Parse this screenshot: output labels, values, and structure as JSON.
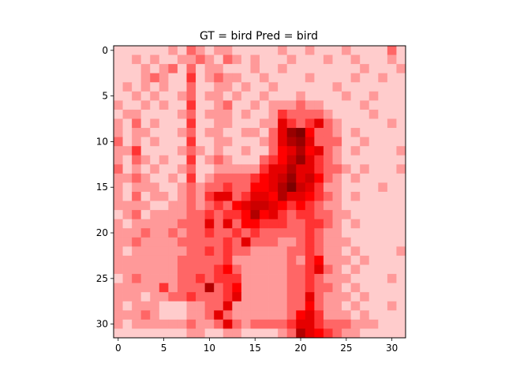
{
  "chart_data": {
    "type": "heatmap",
    "title": "GT = bird Pred = bird",
    "xlabel": "",
    "ylabel": "",
    "colormap": [
      "#ffffff",
      "#ff0000",
      "#7f0000"
    ],
    "value_range": [
      0,
      1
    ],
    "xlim": [
      -0.5,
      31.5
    ],
    "ylim": [
      31.5,
      -0.5
    ],
    "xticks": [
      0,
      5,
      10,
      15,
      20,
      25,
      30
    ],
    "yticks": [
      0,
      5,
      10,
      15,
      20,
      25,
      30
    ],
    "grid": false,
    "legend": "none",
    "values": [
      [
        0.1,
        0.1,
        0.1,
        0.1,
        0.1,
        0.1,
        0.2,
        0.1,
        0.3,
        0.2,
        0.1,
        0.2,
        0.2,
        0.1,
        0.1,
        0.1,
        0.1,
        0.1,
        0.2,
        0.1,
        0.1,
        0.2,
        0.1,
        0.1,
        0.1,
        0.2,
        0.1,
        0.1,
        0.1,
        0.1,
        0.3,
        0.1
      ],
      [
        0.1,
        0.1,
        0.2,
        0.1,
        0.2,
        0.1,
        0.1,
        0.2,
        0.2,
        0.3,
        0.2,
        0.1,
        0.3,
        0.2,
        0.1,
        0.2,
        0.1,
        0.1,
        0.1,
        0.2,
        0.1,
        0.1,
        0.1,
        0.2,
        0.1,
        0.1,
        0.2,
        0.1,
        0.1,
        0.1,
        0.2,
        0.1
      ],
      [
        0.1,
        0.1,
        0.1,
        0.2,
        0.1,
        0.2,
        0.3,
        0.1,
        0.3,
        0.1,
        0.2,
        0.2,
        0.1,
        0.1,
        0.1,
        0.2,
        0.1,
        0.1,
        0.2,
        0.1,
        0.1,
        0.1,
        0.1,
        0.1,
        0.1,
        0.1,
        0.1,
        0.2,
        0.1,
        0.1,
        0.1,
        0.2
      ],
      [
        0.1,
        0.1,
        0.1,
        0.2,
        0.3,
        0.2,
        0.1,
        0.1,
        0.4,
        0.1,
        0.2,
        0.3,
        0.2,
        0.2,
        0.1,
        0.1,
        0.2,
        0.1,
        0.1,
        0.1,
        0.1,
        0.2,
        0.1,
        0.1,
        0.1,
        0.1,
        0.2,
        0.1,
        0.1,
        0.2,
        0.1,
        0.1
      ],
      [
        0.1,
        0.2,
        0.1,
        0.2,
        0.1,
        0.2,
        0.1,
        0.1,
        0.3,
        0.1,
        0.1,
        0.2,
        0.2,
        0.1,
        0.2,
        0.1,
        0.1,
        0.2,
        0.1,
        0.1,
        0.1,
        0.1,
        0.1,
        0.1,
        0.2,
        0.1,
        0.1,
        0.1,
        0.1,
        0.1,
        0.1,
        0.1
      ],
      [
        0.1,
        0.1,
        0.2,
        0.1,
        0.2,
        0.1,
        0.1,
        0.2,
        0.3,
        0.1,
        0.2,
        0.2,
        0.1,
        0.2,
        0.1,
        0.1,
        0.2,
        0.1,
        0.1,
        0.1,
        0.2,
        0.1,
        0.1,
        0.1,
        0.1,
        0.2,
        0.1,
        0.1,
        0.2,
        0.1,
        0.1,
        0.1
      ],
      [
        0.2,
        0.1,
        0.1,
        0.2,
        0.1,
        0.2,
        0.1,
        0.1,
        0.4,
        0.1,
        0.1,
        0.2,
        0.3,
        0.1,
        0.1,
        0.2,
        0.1,
        0.2,
        0.2,
        0.2,
        0.3,
        0.2,
        0.2,
        0.1,
        0.1,
        0.1,
        0.1,
        0.2,
        0.1,
        0.1,
        0.1,
        0.1
      ],
      [
        0.1,
        0.2,
        0.2,
        0.1,
        0.1,
        0.1,
        0.1,
        0.2,
        0.3,
        0.1,
        0.2,
        0.2,
        0.2,
        0.1,
        0.2,
        0.1,
        0.1,
        0.2,
        0.4,
        0.3,
        0.3,
        0.3,
        0.3,
        0.2,
        0.1,
        0.1,
        0.1,
        0.1,
        0.2,
        0.1,
        0.1,
        0.1
      ],
      [
        0.2,
        0.1,
        0.3,
        0.1,
        0.2,
        0.1,
        0.1,
        0.1,
        0.4,
        0.1,
        0.1,
        0.2,
        0.2,
        0.1,
        0.1,
        0.1,
        0.2,
        0.2,
        0.6,
        0.4,
        0.3,
        0.4,
        0.6,
        0.3,
        0.2,
        0.1,
        0.1,
        0.1,
        0.1,
        0.1,
        0.2,
        0.1
      ],
      [
        0.2,
        0.1,
        0.2,
        0.2,
        0.1,
        0.1,
        0.1,
        0.2,
        0.3,
        0.1,
        0.2,
        0.2,
        0.1,
        0.1,
        0.2,
        0.2,
        0.1,
        0.3,
        0.6,
        0.9,
        1.0,
        0.5,
        0.3,
        0.3,
        0.2,
        0.1,
        0.2,
        0.1,
        0.1,
        0.1,
        0.1,
        0.1
      ],
      [
        0.3,
        0.1,
        0.2,
        0.1,
        0.2,
        0.1,
        0.1,
        0.1,
        0.4,
        0.1,
        0.1,
        0.2,
        0.2,
        0.1,
        0.1,
        0.1,
        0.2,
        0.3,
        0.6,
        0.8,
        0.9,
        0.6,
        0.3,
        0.3,
        0.3,
        0.1,
        0.1,
        0.2,
        0.1,
        0.1,
        0.1,
        0.1
      ],
      [
        0.2,
        0.2,
        0.4,
        0.1,
        0.1,
        0.1,
        0.1,
        0.2,
        0.3,
        0.2,
        0.1,
        0.2,
        0.1,
        0.1,
        0.2,
        0.1,
        0.1,
        0.3,
        0.5,
        0.6,
        0.8,
        0.5,
        0.6,
        0.3,
        0.2,
        0.1,
        0.2,
        0.1,
        0.1,
        0.1,
        0.1,
        0.2
      ],
      [
        0.2,
        0.1,
        0.3,
        0.2,
        0.1,
        0.2,
        0.1,
        0.1,
        0.4,
        0.1,
        0.2,
        0.3,
        0.2,
        0.1,
        0.1,
        0.1,
        0.3,
        0.4,
        0.5,
        0.7,
        0.9,
        0.6,
        0.4,
        0.3,
        0.2,
        0.1,
        0.1,
        0.1,
        0.1,
        0.1,
        0.1,
        0.1
      ],
      [
        0.3,
        0.1,
        0.2,
        0.1,
        0.2,
        0.1,
        0.1,
        0.2,
        0.3,
        0.1,
        0.1,
        0.2,
        0.2,
        0.2,
        0.2,
        0.2,
        0.4,
        0.6,
        0.6,
        0.8,
        0.6,
        0.6,
        0.4,
        0.3,
        0.3,
        0.2,
        0.1,
        0.2,
        0.1,
        0.1,
        0.1,
        0.2
      ],
      [
        0.2,
        0.2,
        0.3,
        0.2,
        0.1,
        0.1,
        0.2,
        0.1,
        0.4,
        0.1,
        0.2,
        0.3,
        0.3,
        0.3,
        0.3,
        0.4,
        0.5,
        0.6,
        0.7,
        0.9,
        0.6,
        0.7,
        0.5,
        0.3,
        0.2,
        0.1,
        0.2,
        0.1,
        0.1,
        0.1,
        0.1,
        0.1
      ],
      [
        0.2,
        0.1,
        0.2,
        0.2,
        0.2,
        0.1,
        0.1,
        0.2,
        0.3,
        0.2,
        0.3,
        0.3,
        0.4,
        0.3,
        0.3,
        0.5,
        0.5,
        0.6,
        0.8,
        1.0,
        0.7,
        0.6,
        0.4,
        0.2,
        0.2,
        0.1,
        0.1,
        0.1,
        0.1,
        0.2,
        0.1,
        0.1
      ],
      [
        0.2,
        0.1,
        0.3,
        0.1,
        0.2,
        0.2,
        0.1,
        0.2,
        0.3,
        0.2,
        0.4,
        0.6,
        0.6,
        0.3,
        0.4,
        0.6,
        0.6,
        0.5,
        0.8,
        0.6,
        0.6,
        0.5,
        0.4,
        0.3,
        0.2,
        0.1,
        0.2,
        0.1,
        0.1,
        0.1,
        0.1,
        0.1
      ],
      [
        0.2,
        0.2,
        0.2,
        0.2,
        0.1,
        0.1,
        0.2,
        0.2,
        0.3,
        0.2,
        0.3,
        0.4,
        0.3,
        0.5,
        0.6,
        0.7,
        0.7,
        0.6,
        0.5,
        0.4,
        0.5,
        0.4,
        0.3,
        0.2,
        0.2,
        0.1,
        0.1,
        0.1,
        0.1,
        0.1,
        0.1,
        0.1
      ],
      [
        0.1,
        0.2,
        0.3,
        0.1,
        0.2,
        0.2,
        0.2,
        0.2,
        0.3,
        0.3,
        0.4,
        0.3,
        0.4,
        0.4,
        0.5,
        0.8,
        0.5,
        0.6,
        0.4,
        0.3,
        0.4,
        0.4,
        0.3,
        0.3,
        0.2,
        0.2,
        0.1,
        0.1,
        0.1,
        0.1,
        0.1,
        0.1
      ],
      [
        0.2,
        0.1,
        0.2,
        0.2,
        0.2,
        0.2,
        0.2,
        0.3,
        0.3,
        0.3,
        0.6,
        0.3,
        0.6,
        0.3,
        0.5,
        0.5,
        0.4,
        0.4,
        0.4,
        0.3,
        0.3,
        0.4,
        0.4,
        0.3,
        0.2,
        0.1,
        0.2,
        0.1,
        0.1,
        0.1,
        0.1,
        0.1
      ],
      [
        0.2,
        0.2,
        0.2,
        0.3,
        0.2,
        0.2,
        0.3,
        0.2,
        0.3,
        0.3,
        0.4,
        0.3,
        0.3,
        0.4,
        0.3,
        0.4,
        0.3,
        0.3,
        0.3,
        0.3,
        0.3,
        0.4,
        0.3,
        0.2,
        0.2,
        0.1,
        0.1,
        0.1,
        0.1,
        0.1,
        0.1,
        0.1
      ],
      [
        0.2,
        0.2,
        0.3,
        0.2,
        0.2,
        0.2,
        0.2,
        0.3,
        0.3,
        0.3,
        0.3,
        0.3,
        0.4,
        0.3,
        0.6,
        0.3,
        0.3,
        0.3,
        0.2,
        0.2,
        0.3,
        0.4,
        0.3,
        0.2,
        0.2,
        0.2,
        0.1,
        0.1,
        0.1,
        0.1,
        0.1,
        0.1
      ],
      [
        0.2,
        0.1,
        0.2,
        0.2,
        0.2,
        0.2,
        0.2,
        0.2,
        0.3,
        0.3,
        0.4,
        0.3,
        0.4,
        0.3,
        0.3,
        0.2,
        0.2,
        0.2,
        0.2,
        0.3,
        0.3,
        0.4,
        0.3,
        0.2,
        0.2,
        0.1,
        0.2,
        0.1,
        0.1,
        0.1,
        0.1,
        0.2
      ],
      [
        0.2,
        0.2,
        0.2,
        0.2,
        0.2,
        0.2,
        0.2,
        0.3,
        0.3,
        0.3,
        0.3,
        0.3,
        0.4,
        0.2,
        0.2,
        0.2,
        0.2,
        0.2,
        0.2,
        0.3,
        0.2,
        0.4,
        0.5,
        0.2,
        0.2,
        0.2,
        0.1,
        0.2,
        0.1,
        0.1,
        0.1,
        0.1
      ],
      [
        0.2,
        0.2,
        0.2,
        0.2,
        0.2,
        0.2,
        0.2,
        0.3,
        0.3,
        0.3,
        0.3,
        0.4,
        0.5,
        0.3,
        0.2,
        0.2,
        0.2,
        0.2,
        0.2,
        0.3,
        0.3,
        0.4,
        0.6,
        0.3,
        0.2,
        0.1,
        0.2,
        0.1,
        0.1,
        0.1,
        0.1,
        0.1
      ],
      [
        0.1,
        0.2,
        0.3,
        0.2,
        0.2,
        0.2,
        0.2,
        0.3,
        0.3,
        0.4,
        0.3,
        0.4,
        0.4,
        0.4,
        0.2,
        0.2,
        0.2,
        0.2,
        0.2,
        0.3,
        0.3,
        0.4,
        0.3,
        0.2,
        0.2,
        0.2,
        0.1,
        0.1,
        0.1,
        0.1,
        0.2,
        0.1
      ],
      [
        0.2,
        0.2,
        0.2,
        0.2,
        0.2,
        0.4,
        0.2,
        0.3,
        0.3,
        0.3,
        0.8,
        0.3,
        0.4,
        0.5,
        0.2,
        0.2,
        0.2,
        0.2,
        0.2,
        0.3,
        0.3,
        0.4,
        0.3,
        0.3,
        0.2,
        0.1,
        0.2,
        0.1,
        0.1,
        0.1,
        0.1,
        0.1
      ],
      [
        0.2,
        0.2,
        0.2,
        0.1,
        0.2,
        0.2,
        0.3,
        0.3,
        0.4,
        0.3,
        0.3,
        0.3,
        0.4,
        0.6,
        0.2,
        0.2,
        0.2,
        0.2,
        0.2,
        0.3,
        0.3,
        0.6,
        0.3,
        0.2,
        0.2,
        0.2,
        0.1,
        0.2,
        0.1,
        0.1,
        0.1,
        0.1
      ],
      [
        0.2,
        0.1,
        0.2,
        0.2,
        0.2,
        0.1,
        0.1,
        0.1,
        0.2,
        0.2,
        0.3,
        0.3,
        0.6,
        0.2,
        0.2,
        0.2,
        0.2,
        0.2,
        0.2,
        0.3,
        0.3,
        0.5,
        0.3,
        0.2,
        0.2,
        0.1,
        0.2,
        0.1,
        0.1,
        0.1,
        0.2,
        0.1
      ],
      [
        0.2,
        0.2,
        0.2,
        0.3,
        0.2,
        0.1,
        0.1,
        0.1,
        0.2,
        0.2,
        0.3,
        0.6,
        0.3,
        0.2,
        0.2,
        0.2,
        0.2,
        0.2,
        0.2,
        0.3,
        0.5,
        0.6,
        0.4,
        0.2,
        0.2,
        0.2,
        0.1,
        0.2,
        0.1,
        0.1,
        0.1,
        0.1
      ],
      [
        0.2,
        0.1,
        0.2,
        0.2,
        0.2,
        0.2,
        0.2,
        0.2,
        0.3,
        0.2,
        0.2,
        0.3,
        0.6,
        0.3,
        0.2,
        0.3,
        0.3,
        0.3,
        0.3,
        0.4,
        0.6,
        0.6,
        0.4,
        0.3,
        0.3,
        0.3,
        0.2,
        0.2,
        0.2,
        0.1,
        0.1,
        0.1
      ],
      [
        0.1,
        0.1,
        0.1,
        0.1,
        0.1,
        0.1,
        0.1,
        0.1,
        0.2,
        0.2,
        0.1,
        0.1,
        0.2,
        0.2,
        0.1,
        0.1,
        0.1,
        0.1,
        0.2,
        0.3,
        0.8,
        0.6,
        0.5,
        0.4,
        0.3,
        0.2,
        0.2,
        0.1,
        0.1,
        0.1,
        0.1,
        0.1
      ]
    ]
  }
}
